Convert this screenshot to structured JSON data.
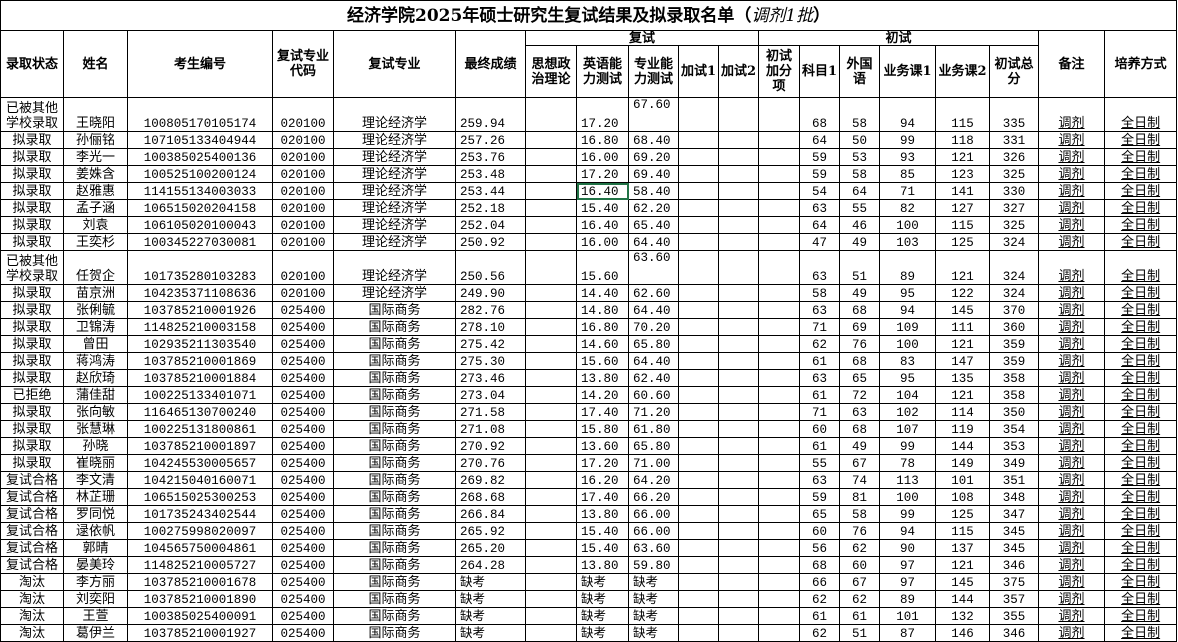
{
  "title": {
    "main": "经济学院2025年硕士研究生复试结果及拟录取名单（",
    "italic": "调剂1批",
    "close": "）"
  },
  "groups": {
    "retest": "复试",
    "initial": "初试"
  },
  "headers": [
    "录取状态",
    "姓名",
    "考生编号",
    "复试专业代码",
    "复试专业",
    "最终成绩",
    "思想政治理论",
    "英语能力测试",
    "专业能力测试",
    "加试1",
    "加试2",
    "初试加分项",
    "科目1",
    "外国语",
    "业务课1",
    "业务课2",
    "初试总分",
    "备注",
    "培养方式"
  ],
  "selected_cell": {
    "row": 4,
    "column": "英语能力测试",
    "color": "#217346"
  },
  "rows": [
    [
      "已被其他学校录取",
      "王晓阳",
      "100805170105174",
      "020100",
      "理论经济学",
      "259.94",
      "",
      "17.20",
      "67.60",
      "",
      "",
      "",
      "68",
      "58",
      "94",
      "115",
      "335",
      "调剂",
      "全日制"
    ],
    [
      "拟录取",
      "孙俪铭",
      "107105133404944",
      "020100",
      "理论经济学",
      "257.26",
      "",
      "16.80",
      "68.40",
      "",
      "",
      "",
      "64",
      "50",
      "99",
      "118",
      "331",
      "调剂",
      "全日制"
    ],
    [
      "拟录取",
      "李光一",
      "100385025400136",
      "020100",
      "理论经济学",
      "253.76",
      "",
      "16.00",
      "69.20",
      "",
      "",
      "",
      "59",
      "53",
      "93",
      "121",
      "326",
      "调剂",
      "全日制"
    ],
    [
      "拟录取",
      "姜姝含",
      "100525100200124",
      "020100",
      "理论经济学",
      "253.48",
      "",
      "17.20",
      "69.40",
      "",
      "",
      "",
      "59",
      "58",
      "85",
      "123",
      "325",
      "调剂",
      "全日制"
    ],
    [
      "拟录取",
      "赵雅惠",
      "114155134003033",
      "020100",
      "理论经济学",
      "253.44",
      "",
      "16.40",
      "58.40",
      "",
      "",
      "",
      "54",
      "64",
      "71",
      "141",
      "330",
      "调剂",
      "全日制"
    ],
    [
      "拟录取",
      "孟子涵",
      "106515020204158",
      "020100",
      "理论经济学",
      "252.18",
      "",
      "15.40",
      "62.20",
      "",
      "",
      "",
      "63",
      "55",
      "82",
      "127",
      "327",
      "调剂",
      "全日制"
    ],
    [
      "拟录取",
      "刘袁",
      "106105020100043",
      "020100",
      "理论经济学",
      "252.04",
      "",
      "16.40",
      "65.40",
      "",
      "",
      "",
      "64",
      "46",
      "100",
      "115",
      "325",
      "调剂",
      "全日制"
    ],
    [
      "拟录取",
      "王奕杉",
      "100345227030081",
      "020100",
      "理论经济学",
      "250.92",
      "",
      "16.00",
      "64.40",
      "",
      "",
      "",
      "47",
      "49",
      "103",
      "125",
      "324",
      "调剂",
      "全日制"
    ],
    [
      "已被其他学校录取",
      "任贺企",
      "101735280103283",
      "020100",
      "理论经济学",
      "250.56",
      "",
      "15.60",
      "63.60",
      "",
      "",
      "",
      "63",
      "51",
      "89",
      "121",
      "324",
      "调剂",
      "全日制"
    ],
    [
      "拟录取",
      "苗京洲",
      "104235371108636",
      "020100",
      "理论经济学",
      "249.90",
      "",
      "14.40",
      "62.60",
      "",
      "",
      "",
      "58",
      "49",
      "95",
      "122",
      "324",
      "调剂",
      "全日制"
    ],
    [
      "拟录取",
      "张俐毓",
      "103785210001926",
      "025400",
      "国际商务",
      "282.76",
      "",
      "14.80",
      "64.40",
      "",
      "",
      "",
      "63",
      "68",
      "94",
      "145",
      "370",
      "调剂",
      "全日制"
    ],
    [
      "拟录取",
      "卫锦涛",
      "114825210003158",
      "025400",
      "国际商务",
      "278.10",
      "",
      "16.80",
      "70.20",
      "",
      "",
      "",
      "71",
      "69",
      "109",
      "111",
      "360",
      "调剂",
      "全日制"
    ],
    [
      "拟录取",
      "曾田",
      "102935211303540",
      "025400",
      "国际商务",
      "275.42",
      "",
      "14.60",
      "65.80",
      "",
      "",
      "",
      "62",
      "76",
      "100",
      "121",
      "359",
      "调剂",
      "全日制"
    ],
    [
      "拟录取",
      "蒋鸿涛",
      "103785210001869",
      "025400",
      "国际商务",
      "275.30",
      "",
      "15.60",
      "64.40",
      "",
      "",
      "",
      "61",
      "68",
      "83",
      "147",
      "359",
      "调剂",
      "全日制"
    ],
    [
      "拟录取",
      "赵欣琦",
      "103785210001884",
      "025400",
      "国际商务",
      "273.46",
      "",
      "13.80",
      "62.40",
      "",
      "",
      "",
      "63",
      "65",
      "95",
      "135",
      "358",
      "调剂",
      "全日制"
    ],
    [
      "已拒绝",
      "蒲佳甜",
      "100225133401071",
      "025400",
      "国际商务",
      "273.04",
      "",
      "14.20",
      "60.60",
      "",
      "",
      "",
      "61",
      "72",
      "104",
      "121",
      "358",
      "调剂",
      "全日制"
    ],
    [
      "拟录取",
      "张向敏",
      "116465130700240",
      "025400",
      "国际商务",
      "271.58",
      "",
      "17.40",
      "71.20",
      "",
      "",
      "",
      "71",
      "63",
      "102",
      "114",
      "350",
      "调剂",
      "全日制"
    ],
    [
      "拟录取",
      "张慧琳",
      "100225131800861",
      "025400",
      "国际商务",
      "271.08",
      "",
      "15.80",
      "61.80",
      "",
      "",
      "",
      "60",
      "68",
      "107",
      "119",
      "354",
      "调剂",
      "全日制"
    ],
    [
      "拟录取",
      "孙晓",
      "103785210001897",
      "025400",
      "国际商务",
      "270.92",
      "",
      "13.60",
      "65.80",
      "",
      "",
      "",
      "61",
      "49",
      "99",
      "144",
      "353",
      "调剂",
      "全日制"
    ],
    [
      "拟录取",
      "崔晓丽",
      "104245530005657",
      "025400",
      "国际商务",
      "270.76",
      "",
      "17.20",
      "71.00",
      "",
      "",
      "",
      "55",
      "67",
      "78",
      "149",
      "349",
      "调剂",
      "全日制"
    ],
    [
      "复试合格",
      "李文清",
      "104215040160071",
      "025400",
      "国际商务",
      "269.82",
      "",
      "16.20",
      "64.20",
      "",
      "",
      "",
      "63",
      "74",
      "113",
      "101",
      "351",
      "调剂",
      "全日制"
    ],
    [
      "复试合格",
      "林芷珊",
      "106515025300253",
      "025400",
      "国际商务",
      "268.68",
      "",
      "17.40",
      "66.20",
      "",
      "",
      "",
      "59",
      "81",
      "100",
      "108",
      "348",
      "调剂",
      "全日制"
    ],
    [
      "复试合格",
      "罗同悦",
      "101735243402544",
      "025400",
      "国际商务",
      "266.84",
      "",
      "13.80",
      "66.00",
      "",
      "",
      "",
      "65",
      "58",
      "99",
      "125",
      "347",
      "调剂",
      "全日制"
    ],
    [
      "复试合格",
      "逯依帆",
      "100275998020097",
      "025400",
      "国际商务",
      "265.92",
      "",
      "15.40",
      "66.00",
      "",
      "",
      "",
      "60",
      "76",
      "94",
      "115",
      "345",
      "调剂",
      "全日制"
    ],
    [
      "复试合格",
      "郭晴",
      "104565750004861",
      "025400",
      "国际商务",
      "265.20",
      "",
      "15.40",
      "63.60",
      "",
      "",
      "",
      "56",
      "62",
      "90",
      "137",
      "345",
      "调剂",
      "全日制"
    ],
    [
      "复试合格",
      "晏美玲",
      "114825210005727",
      "025400",
      "国际商务",
      "264.28",
      "",
      "13.80",
      "59.80",
      "",
      "",
      "",
      "68",
      "60",
      "97",
      "121",
      "346",
      "调剂",
      "全日制"
    ],
    [
      "淘汰",
      "李方丽",
      "103785210001678",
      "025400",
      "国际商务",
      "缺考",
      "",
      "缺考",
      "缺考",
      "",
      "",
      "",
      "66",
      "67",
      "97",
      "145",
      "375",
      "调剂",
      "全日制"
    ],
    [
      "淘汰",
      "刘奕阳",
      "103785210001890",
      "025400",
      "国际商务",
      "缺考",
      "",
      "缺考",
      "缺考",
      "",
      "",
      "",
      "62",
      "62",
      "89",
      "144",
      "357",
      "调剂",
      "全日制"
    ],
    [
      "淘汰",
      "王萱",
      "100385025400091",
      "025400",
      "国际商务",
      "缺考",
      "",
      "缺考",
      "缺考",
      "",
      "",
      "",
      "61",
      "61",
      "101",
      "132",
      "355",
      "调剂",
      "全日制"
    ],
    [
      "淘汰",
      "葛伊兰",
      "103785210001927",
      "025400",
      "国际商务",
      "缺考",
      "",
      "缺考",
      "缺考",
      "",
      "",
      "",
      "62",
      "51",
      "87",
      "146",
      "346",
      "调剂",
      "全日制"
    ]
  ]
}
